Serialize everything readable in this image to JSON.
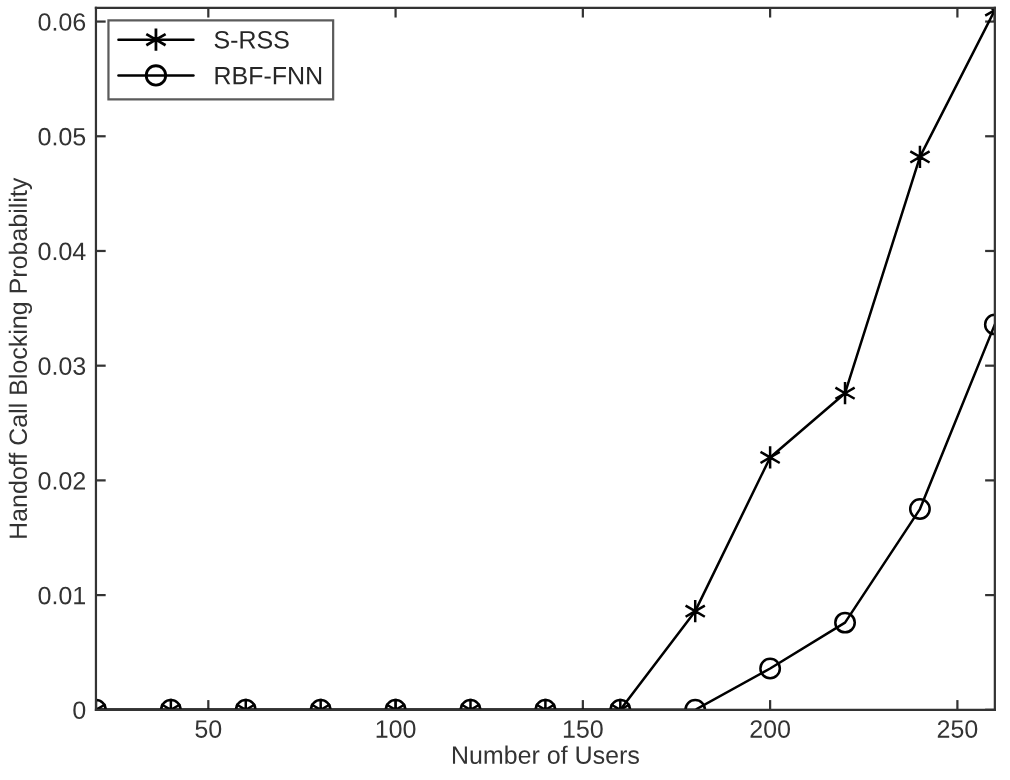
{
  "chart_data": {
    "type": "line",
    "xlabel": "Number of Users",
    "ylabel": "Handoff Call Blocking Probability",
    "x": [
      20,
      40,
      60,
      80,
      100,
      120,
      140,
      160,
      180,
      200,
      220,
      240,
      260
    ],
    "series": [
      {
        "name": "S-RSS",
        "color": "#000000",
        "marker": "cross",
        "values": [
          0,
          0,
          0,
          0,
          0,
          0,
          0,
          0,
          0.0086,
          0.022,
          0.0276,
          0.0482,
          0.061
        ]
      },
      {
        "name": "RBF-FNN",
        "color": "#000000",
        "marker": "circle",
        "values": [
          0,
          0,
          0,
          0,
          0,
          0,
          0,
          0,
          0,
          0.0036,
          0.0076,
          0.0175,
          0.0336
        ]
      }
    ],
    "xlim": [
      20,
      260
    ],
    "xticks": [
      50,
      100,
      150,
      200,
      250
    ],
    "ylim": [
      0,
      0.0612
    ],
    "yticks": [
      0,
      0.01,
      0.02,
      0.03,
      0.04,
      0.05,
      0.06
    ],
    "grid": false,
    "legend": "top left",
    "line_style": "solid"
  }
}
